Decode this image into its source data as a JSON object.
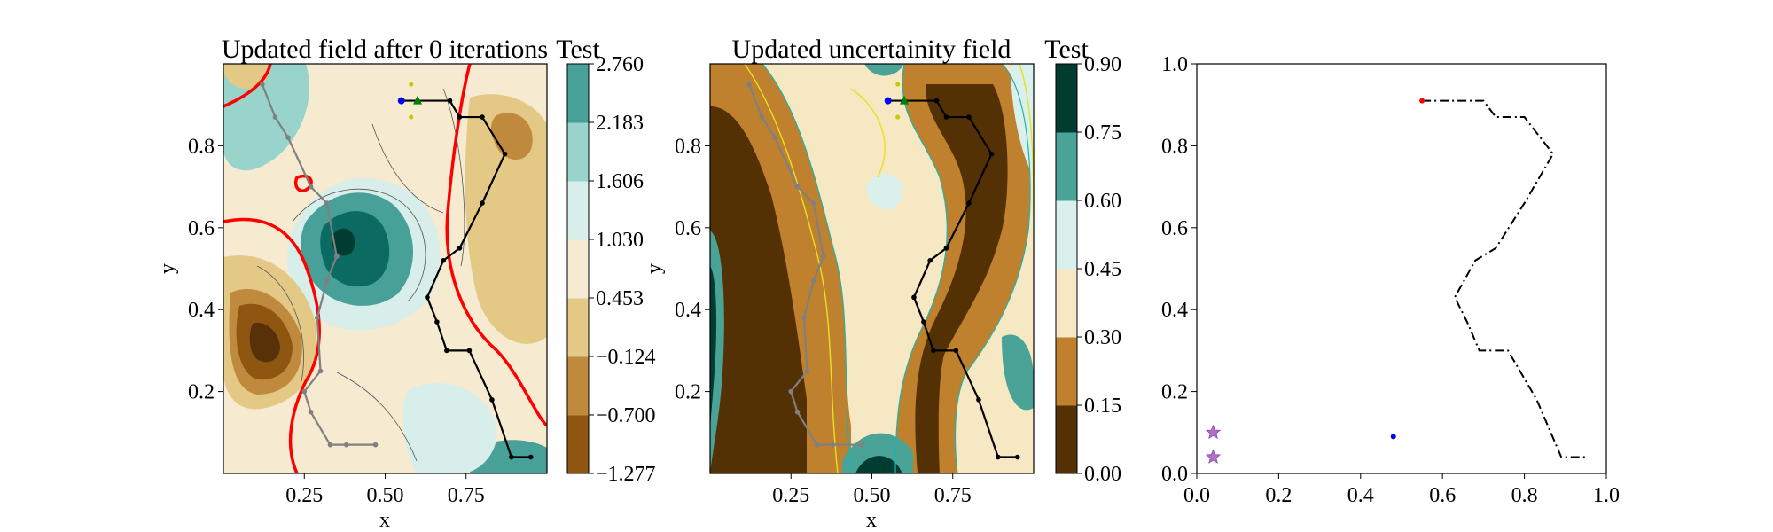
{
  "chart_data": [
    {
      "type": "heatmap",
      "title": "Updated field after 0 iterations",
      "colorbar_title": "Test",
      "xlabel": "x",
      "ylabel": "y",
      "xlim": [
        0.0,
        1.0
      ],
      "ylim": [
        0.0,
        1.0
      ],
      "x_ticks": [
        0.25,
        0.5,
        0.75
      ],
      "y_ticks": [
        0.2,
        0.4,
        0.6,
        0.8
      ],
      "x_tick_labels": [
        "0.25",
        "0.50",
        "0.75"
      ],
      "y_tick_labels": [
        "0.2",
        "0.4",
        "0.6",
        "0.8"
      ],
      "colorbar_levels": [
        -1.277,
        -0.7,
        -0.124,
        0.453,
        1.03,
        1.606,
        2.183,
        2.76
      ],
      "colorbar_tick_labels": [
        "−1.277",
        "−0.700",
        "−0.124",
        "0.453",
        "1.030",
        "1.606",
        "2.183",
        "2.760"
      ],
      "colormap": [
        "#573209",
        "#8e5611",
        "#c08a3e",
        "#e4c886",
        "#f6ead0",
        "#d8eeea",
        "#98d4cb",
        "#47a199",
        "#0b6b62",
        "#003c30"
      ],
      "threshold_contour_color": "#ff0000",
      "path_color": "#000000",
      "history_path_color": "#808080",
      "start_marker_color": "#0000ff",
      "goal_marker_color": "#008000",
      "candidate_marker_color": "#c8c800"
    },
    {
      "type": "heatmap",
      "title": "Updated uncertainity field",
      "colorbar_title": "Test",
      "xlabel": "x",
      "ylabel": "y",
      "xlim": [
        0.0,
        1.0
      ],
      "ylim": [
        0.0,
        1.0
      ],
      "x_ticks": [
        0.25,
        0.5,
        0.75
      ],
      "y_ticks": [
        0.2,
        0.4,
        0.6,
        0.8
      ],
      "x_tick_labels": [
        "0.25",
        "0.50",
        "0.75"
      ],
      "y_tick_labels": [
        "0.2",
        "0.4",
        "0.6",
        "0.8"
      ],
      "colorbar_levels": [
        0.0,
        0.15,
        0.3,
        0.45,
        0.6,
        0.75,
        0.9
      ],
      "colorbar_tick_labels": [
        "0.00",
        "0.15",
        "0.30",
        "0.45",
        "0.60",
        "0.75",
        "0.90"
      ],
      "colormap": [
        "#543005",
        "#bf812d",
        "#f6e8c3",
        "#d9f0ec",
        "#4aa397",
        "#003c30"
      ],
      "contour_line_colors": [
        "#20b2aa",
        "#e8e020"
      ]
    },
    {
      "type": "line",
      "xlim": [
        0.0,
        1.0
      ],
      "ylim": [
        0.0,
        1.0
      ],
      "x_ticks": [
        0.0,
        0.2,
        0.4,
        0.6,
        0.8,
        1.0
      ],
      "y_ticks": [
        0.0,
        0.2,
        0.4,
        0.6,
        0.8,
        1.0
      ],
      "x_tick_labels": [
        "0.0",
        "0.2",
        "0.4",
        "0.6",
        "0.8",
        "1.0"
      ],
      "y_tick_labels": [
        "0.0",
        "0.2",
        "0.4",
        "0.6",
        "0.8",
        "1.0"
      ],
      "path": {
        "style": "dash-dot",
        "color": "#000000",
        "x": [
          0.55,
          0.7,
          0.73,
          0.8,
          0.87,
          0.8,
          0.73,
          0.68,
          0.63,
          0.66,
          0.69,
          0.76,
          0.83,
          0.89,
          0.95
        ],
        "y": [
          0.91,
          0.91,
          0.87,
          0.87,
          0.78,
          0.66,
          0.55,
          0.52,
          0.43,
          0.37,
          0.3,
          0.3,
          0.18,
          0.04,
          0.04
        ]
      },
      "start_point": {
        "x": 0.55,
        "y": 0.91,
        "color": "#ff0000"
      },
      "blue_point": {
        "x": 0.48,
        "y": 0.09,
        "color": "#0000ff"
      },
      "star_points": {
        "x": [
          0.04,
          0.04
        ],
        "y": [
          0.1,
          0.04
        ],
        "color": "#b070c8"
      }
    }
  ]
}
